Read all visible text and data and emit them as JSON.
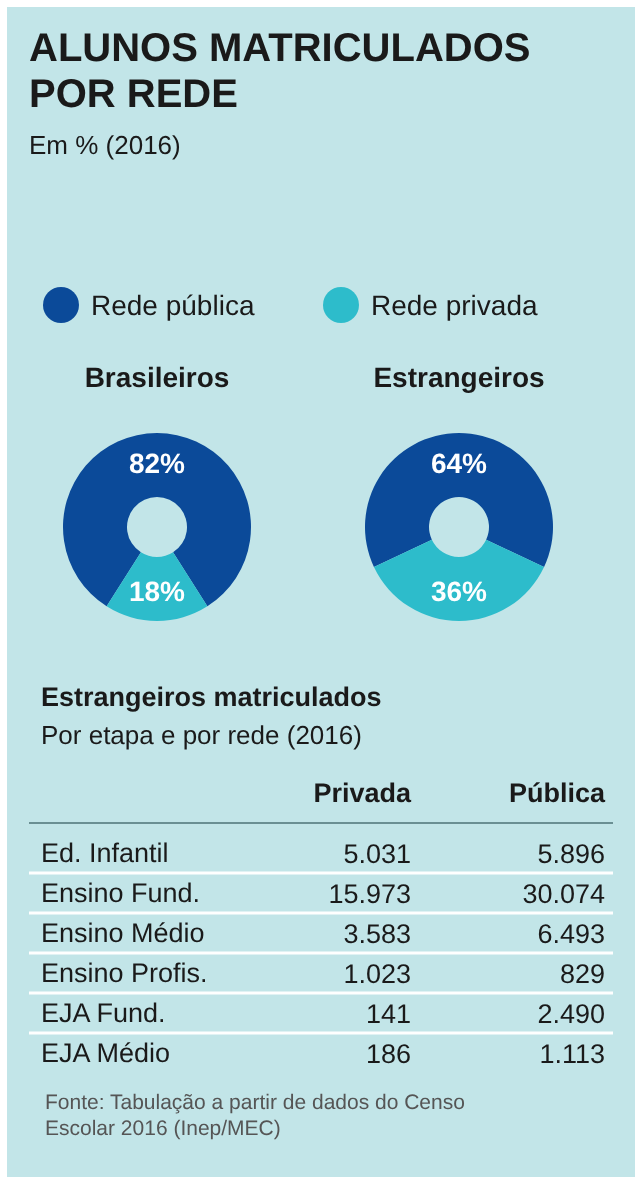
{
  "chart_data": [
    {
      "type": "other",
      "title": "ALUNOS MATRICULADOS POR REDE",
      "subtitle": "Em % (2016)"
    },
    {
      "type": "donut",
      "title": "Brasileiros",
      "categories": [
        "Rede pública",
        "Rede privada"
      ],
      "values": [
        82,
        18
      ],
      "colors": [
        "#0b4a99",
        "#2dbccb"
      ],
      "value_labels": [
        "82%",
        "18%"
      ],
      "legend": "top"
    },
    {
      "type": "donut",
      "title": "Estrangeiros",
      "categories": [
        null,
        null
      ],
      "values": [
        64,
        36
      ],
      "colors": [
        "#0b4a99",
        "#2dbccb"
      ],
      "value_labels": [
        "64%",
        "36%"
      ]
    },
    {
      "type": "other",
      "title": "Estrangeiros matriculados",
      "subtitle": "Por etapa e por rede (2016)",
      "categories": [
        "Ed. Infantil",
        "Ensino Fund.",
        "Ensino Médio",
        "Ensino Profis.",
        "EJA Fund.",
        "EJA Médio"
      ],
      "series": [
        {
          "name": "Privada",
          "values": [
            5031,
            15973,
            3583,
            1023,
            141,
            186
          ],
          "value_labels": [
            "5.031",
            "15.973",
            "3.583",
            "1.023",
            "141",
            "186"
          ]
        },
        {
          "name": "Pública",
          "values": [
            5896,
            30074,
            6493,
            829,
            2490,
            1113
          ],
          "value_labels": [
            "5.896",
            "30.074",
            "6.493",
            "829",
            "2.490",
            "1.113"
          ]
        }
      ],
      "annotations": [
        "Fonte: Tabulação a partir de dados do Censo Escolar 2016 (Inep/MEC)"
      ]
    }
  ]
}
